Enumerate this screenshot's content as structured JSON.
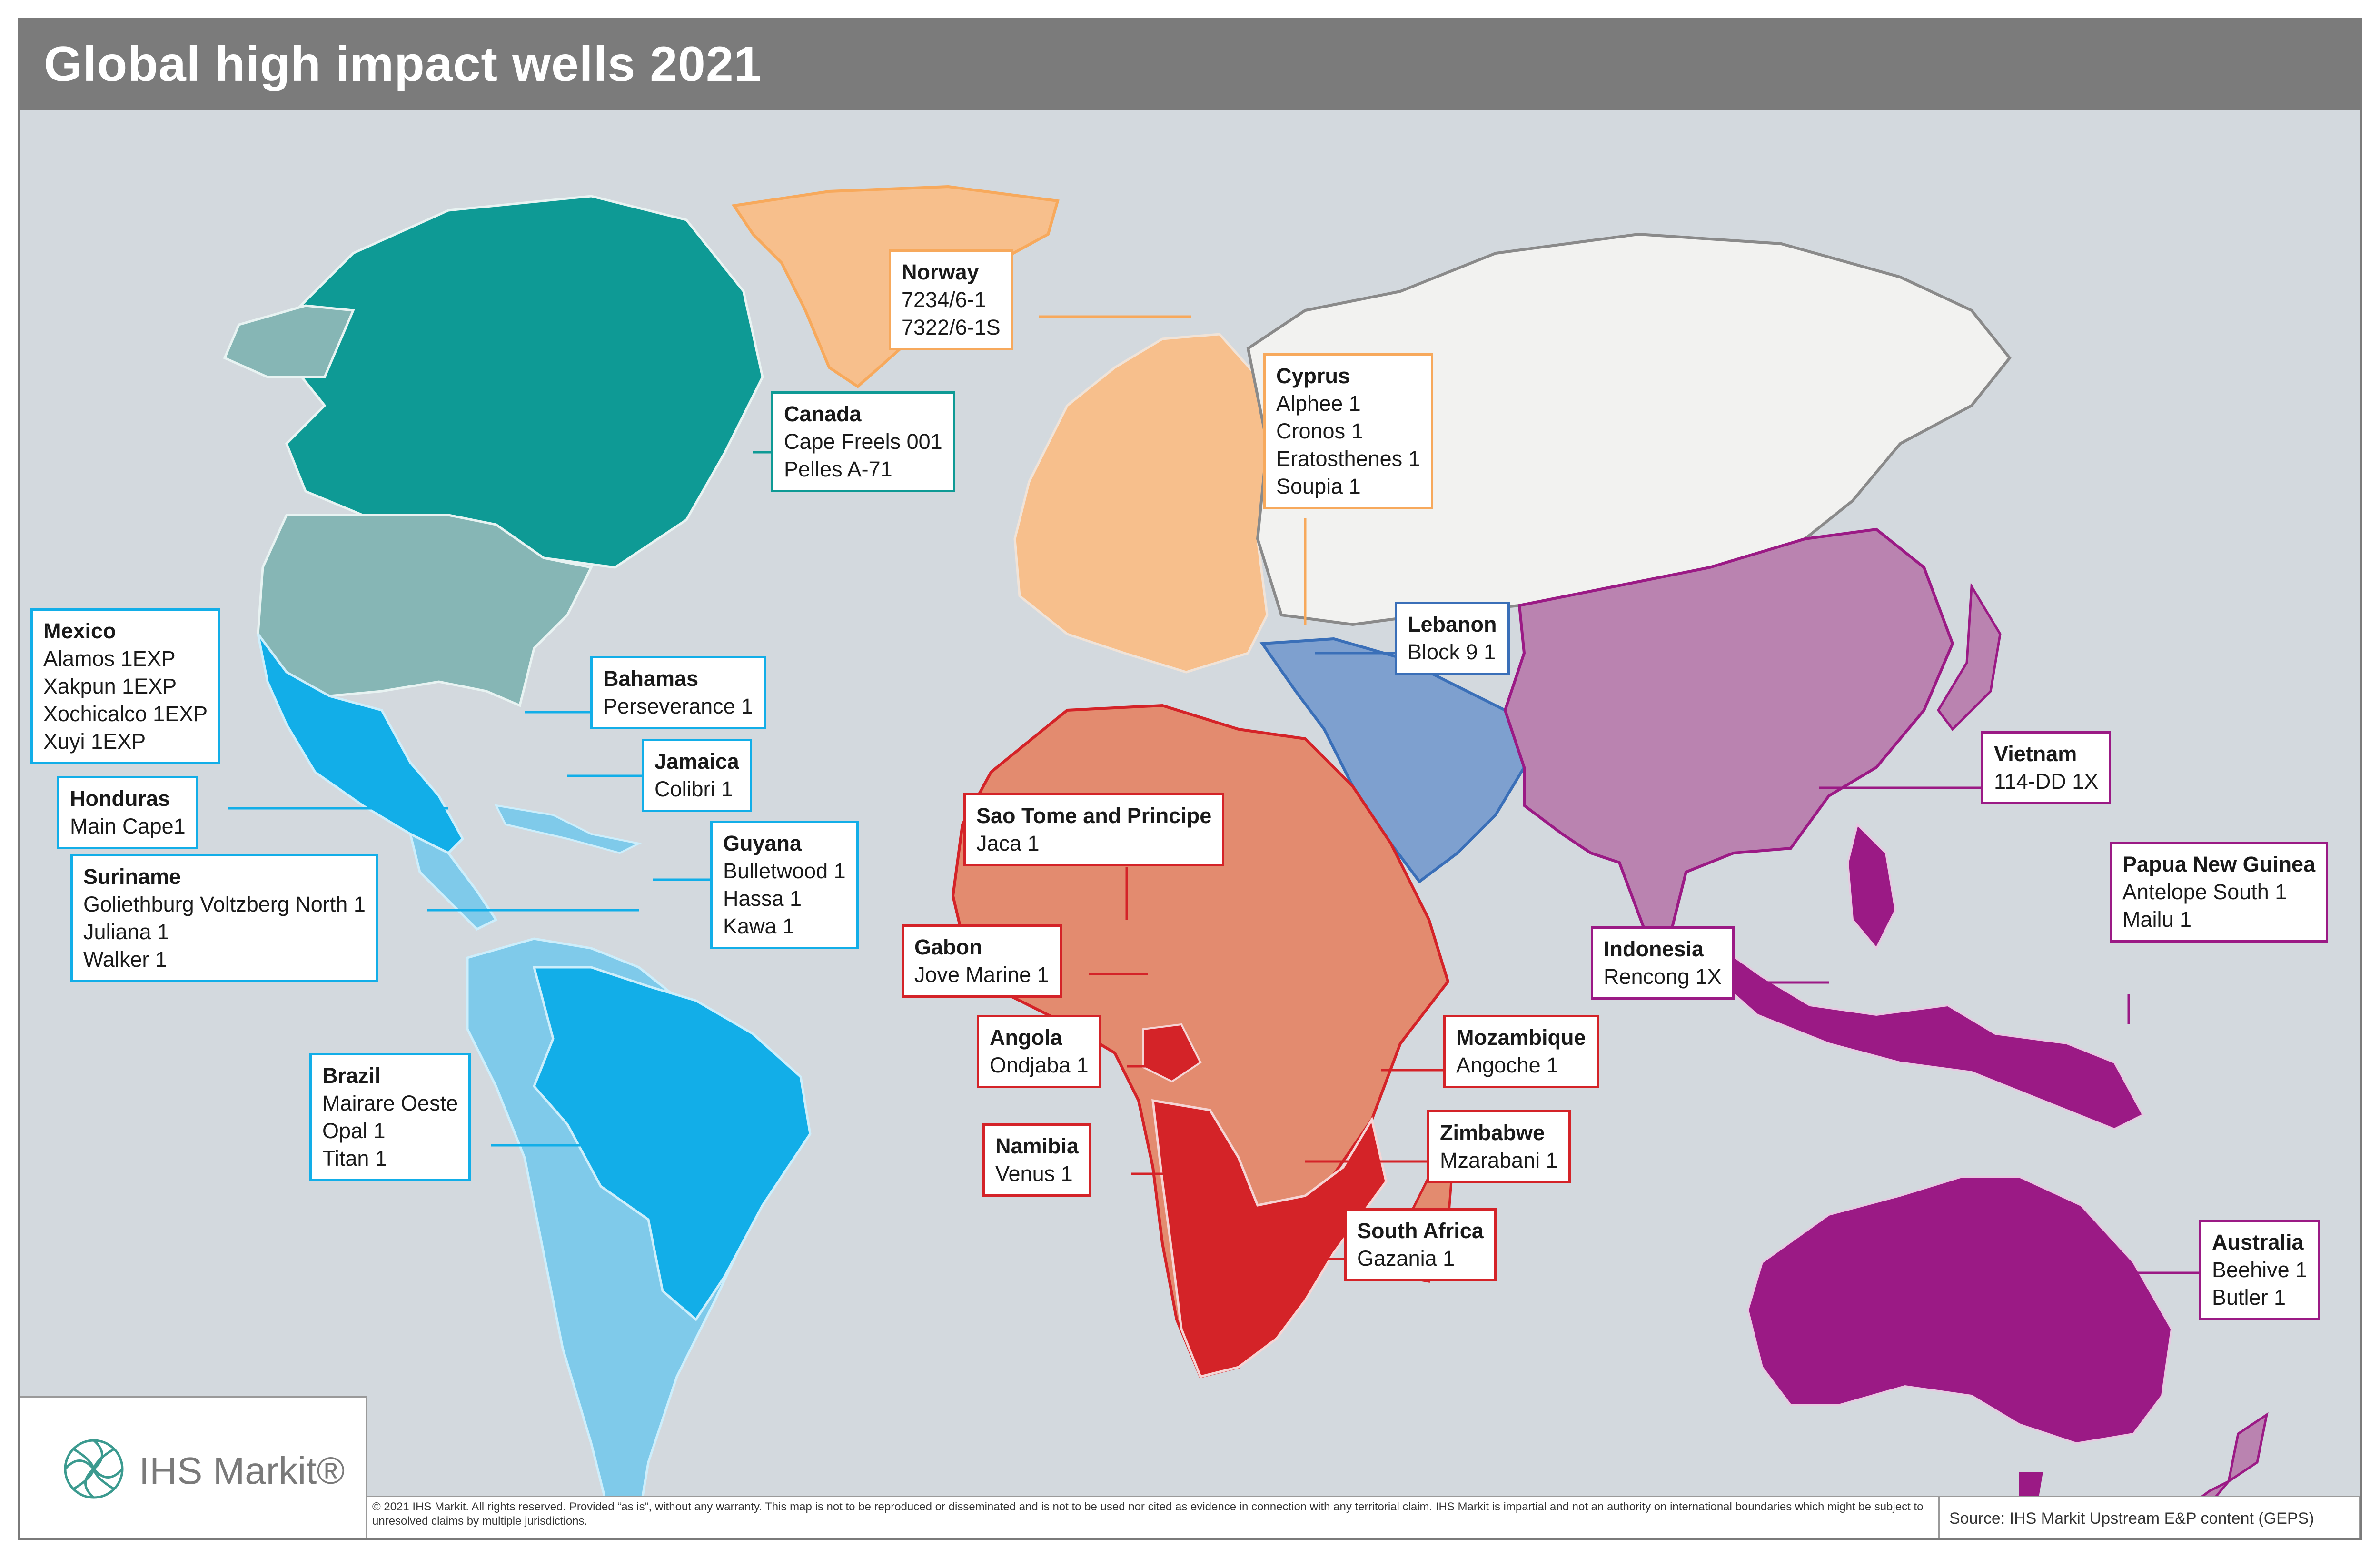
{
  "title": "Global high impact wells 2021",
  "colors": {
    "canada": "#0e9a95",
    "usa": "#86b6b5",
    "mexico_central": "#12aee8",
    "south_america_dark": "#12aee8",
    "south_america_light": "#7fcaea",
    "greenland_europe": "#f7bf8c",
    "russia": "#f2f2f0",
    "middle_east": "#7ea0cf",
    "africa": "#e38b6f",
    "africa_dark": "#d42328",
    "asia": "#ba83b0",
    "oceania": "#9b1a85",
    "ocean": "#d3d9de"
  },
  "labels": [
    {
      "key": "norway",
      "country": "Norway",
      "wells": [
        "7234/6-1",
        "7322/6-1S"
      ],
      "color": "#f7a95c"
    },
    {
      "key": "canada",
      "country": "Canada",
      "wells": [
        "Cape Freels 001",
        "Pelles A-71"
      ],
      "color": "#0e9a95"
    },
    {
      "key": "cyprus",
      "country": "Cyprus",
      "wells": [
        "Alphee 1",
        "Cronos 1",
        "Eratosthenes 1",
        "Soupia 1"
      ],
      "color": "#f7a95c"
    },
    {
      "key": "mexico",
      "country": "Mexico",
      "wells": [
        "Alamos 1EXP",
        "Xakpun 1EXP",
        "Xochicalco 1EXP",
        "Xuyi 1EXP"
      ],
      "color": "#12aee8"
    },
    {
      "key": "bahamas",
      "country": "Bahamas",
      "wells": [
        "Perseverance 1"
      ],
      "color": "#12aee8"
    },
    {
      "key": "lebanon",
      "country": "Lebanon",
      "wells": [
        "Block 9 1"
      ],
      "color": "#3a6fb8"
    },
    {
      "key": "jamaica",
      "country": "Jamaica",
      "wells": [
        "Colibri 1"
      ],
      "color": "#12aee8"
    },
    {
      "key": "honduras",
      "country": "Honduras",
      "wells": [
        "Main Cape1"
      ],
      "color": "#12aee8"
    },
    {
      "key": "vietnam",
      "country": "Vietnam",
      "wells": [
        "114-DD 1X"
      ],
      "color": "#9b1a85"
    },
    {
      "key": "saotome",
      "country": "Sao Tome and Principe",
      "wells": [
        "Jaca 1"
      ],
      "color": "#d42328"
    },
    {
      "key": "guyana",
      "country": "Guyana",
      "wells": [
        "Bulletwood 1",
        "Hassa 1",
        "Kawa 1"
      ],
      "color": "#12aee8"
    },
    {
      "key": "suriname",
      "country": "Suriname",
      "wells": [
        "Goliethburg Voltzberg North 1",
        "Juliana 1",
        "Walker 1"
      ],
      "color": "#12aee8"
    },
    {
      "key": "png",
      "country": "Papua New Guinea",
      "wells": [
        "Antelope South 1",
        "Mailu 1"
      ],
      "color": "#9b1a85"
    },
    {
      "key": "gabon",
      "country": "Gabon",
      "wells": [
        "Jove Marine 1"
      ],
      "color": "#d42328"
    },
    {
      "key": "indonesia",
      "country": "Indonesia",
      "wells": [
        "Rencong 1X"
      ],
      "color": "#9b1a85"
    },
    {
      "key": "angola",
      "country": "Angola",
      "wells": [
        "Ondjaba 1"
      ],
      "color": "#d42328"
    },
    {
      "key": "mozambique",
      "country": "Mozambique",
      "wells": [
        "Angoche 1"
      ],
      "color": "#d42328"
    },
    {
      "key": "brazil",
      "country": "Brazil",
      "wells": [
        "Mairare Oeste",
        "Opal 1",
        "Titan 1"
      ],
      "color": "#12aee8"
    },
    {
      "key": "zimbabwe",
      "country": "Zimbabwe",
      "wells": [
        "Mzarabani 1"
      ],
      "color": "#d42328"
    },
    {
      "key": "namibia",
      "country": "Namibia",
      "wells": [
        "Venus 1"
      ],
      "color": "#d42328"
    },
    {
      "key": "southafrica",
      "country": "South Africa",
      "wells": [
        "Gazania 1"
      ],
      "color": "#d42328"
    },
    {
      "key": "australia",
      "country": "Australia",
      "wells": [
        "Beehive 1",
        "Butler 1"
      ],
      "color": "#9b1a85"
    }
  ],
  "logo": {
    "text": "IHS Markit®",
    "icon": "ihs-markit-logo-icon"
  },
  "footer": {
    "disclaimer": "© 2021 IHS Markit. All rights reserved.  Provided “as is”, without any warranty. This map is not to be reproduced or disseminated and is not to be used nor cited as evidence in connection with any territorial claim. IHS Markit is impartial and not an authority on international boundaries which might be subject to unresolved claims by multiple jurisdictions.",
    "source": "Source: IHS Markit Upstream E&P content (GEPS)"
  }
}
